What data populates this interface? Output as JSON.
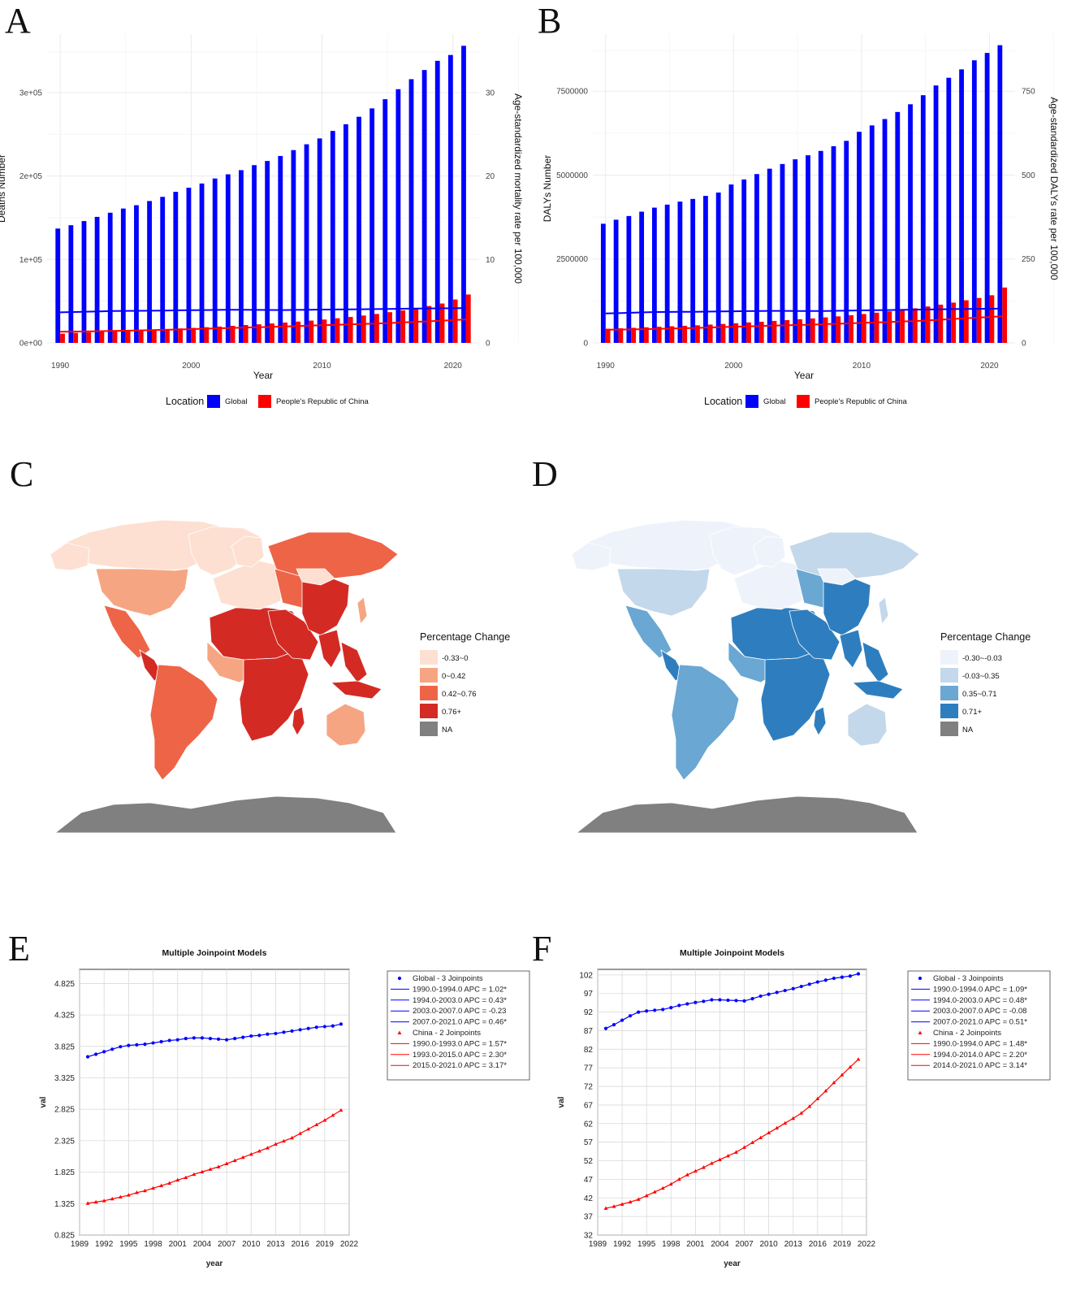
{
  "panel_labels": [
    "A",
    "B",
    "C",
    "D",
    "E",
    "F"
  ],
  "colors": {
    "global": "#0000ff",
    "china": "#ff0000",
    "na": "#808080",
    "grid": "#ebebeb"
  },
  "chart_data": [
    {
      "id": "A",
      "type": "bar",
      "xlabel": "Year",
      "ylabel": "Deaths Number",
      "y2label": "Age-standardized mortality rate per 100,000",
      "x": [
        1990,
        1991,
        1992,
        1993,
        1994,
        1995,
        1996,
        1997,
        1998,
        1999,
        2000,
        2001,
        2002,
        2003,
        2004,
        2005,
        2006,
        2007,
        2008,
        2009,
        2010,
        2011,
        2012,
        2013,
        2014,
        2015,
        2016,
        2017,
        2018,
        2019,
        2020,
        2021
      ],
      "xticks": [
        1990,
        2000,
        2010,
        2020
      ],
      "xlim": [
        1989,
        2022
      ],
      "ylim": [
        0,
        370000
      ],
      "yticks": [
        0,
        100000,
        200000,
        300000
      ],
      "ytick_labels": [
        "0e+00",
        "1e+05",
        "2e+05",
        "3e+05"
      ],
      "y2lim": [
        0,
        37
      ],
      "y2ticks": [
        0,
        10,
        20,
        30
      ],
      "y2tick_labels": [
        "0",
        "10",
        "20",
        "30"
      ],
      "legend_title": "Location",
      "legend": [
        "Global",
        "People's Republic of China"
      ],
      "series": [
        {
          "name": "Global",
          "values": [
            137000,
            141000,
            146000,
            151000,
            156000,
            161000,
            165000,
            170000,
            175000,
            181000,
            186000,
            191000,
            197000,
            202000,
            207000,
            213000,
            218000,
            224000,
            231000,
            238000,
            245000,
            254000,
            262000,
            271000,
            281000,
            292000,
            304000,
            316000,
            327000,
            338000,
            345000,
            356000
          ]
        },
        {
          "name": "People's Republic of China",
          "values": [
            11000,
            12000,
            12600,
            13200,
            13800,
            14500,
            15200,
            15900,
            16600,
            17300,
            18000,
            18800,
            19600,
            20500,
            21400,
            22300,
            23300,
            24400,
            25500,
            26700,
            28000,
            29500,
            31100,
            32800,
            34700,
            36800,
            39000,
            41500,
            44200,
            47200,
            52000,
            58000
          ]
        }
      ],
      "rate_series": [
        {
          "name": "Global",
          "values": [
            3.66,
            3.7,
            3.74,
            3.78,
            3.82,
            3.84,
            3.85,
            3.86,
            3.88,
            3.9,
            3.92,
            3.93,
            3.95,
            3.96,
            3.96,
            3.95,
            3.94,
            3.93,
            3.95,
            3.97,
            3.99,
            4.0,
            4.02,
            4.03,
            4.05,
            4.07,
            4.09,
            4.11,
            4.13,
            4.14,
            4.15,
            4.18
          ]
        },
        {
          "name": "People's Republic of China",
          "values": [
            1.33,
            1.35,
            1.37,
            1.4,
            1.43,
            1.46,
            1.5,
            1.53,
            1.57,
            1.61,
            1.65,
            1.7,
            1.74,
            1.79,
            1.83,
            1.87,
            1.91,
            1.96,
            2.01,
            2.06,
            2.11,
            2.16,
            2.21,
            2.27,
            2.32,
            2.37,
            2.44,
            2.51,
            2.58,
            2.65,
            2.73,
            2.81
          ]
        }
      ]
    },
    {
      "id": "B",
      "type": "bar",
      "xlabel": "Year",
      "ylabel": "DALYs Number",
      "y2label": "Age-standardized DALYs rate per 100,000",
      "x": [
        1990,
        1991,
        1992,
        1993,
        1994,
        1995,
        1996,
        1997,
        1998,
        1999,
        2000,
        2001,
        2002,
        2003,
        2004,
        2005,
        2006,
        2007,
        2008,
        2009,
        2010,
        2011,
        2012,
        2013,
        2014,
        2015,
        2016,
        2017,
        2018,
        2019,
        2020,
        2021
      ],
      "xticks": [
        1990,
        2000,
        2010,
        2020
      ],
      "xlim": [
        1989,
        2022
      ],
      "ylim": [
        0,
        9200000
      ],
      "yticks": [
        0,
        2500000,
        5000000,
        7500000
      ],
      "ytick_labels": [
        "0",
        "2500000",
        "5000000",
        "7500000"
      ],
      "y2lim": [
        0,
        920
      ],
      "y2ticks": [
        0,
        250,
        500,
        750
      ],
      "y2tick_labels": [
        "0",
        "250",
        "500",
        "750"
      ],
      "legend_title": "Location",
      "legend": [
        "Global",
        "People's Republic of China"
      ],
      "series": [
        {
          "name": "Global",
          "values": [
            3550000,
            3670000,
            3780000,
            3910000,
            4030000,
            4120000,
            4210000,
            4290000,
            4380000,
            4480000,
            4720000,
            4870000,
            5030000,
            5190000,
            5330000,
            5470000,
            5590000,
            5720000,
            5860000,
            6020000,
            6290000,
            6480000,
            6670000,
            6880000,
            7110000,
            7380000,
            7670000,
            7900000,
            8150000,
            8420000,
            8640000,
            8870000
          ]
        },
        {
          "name": "People's Republic of China",
          "values": [
            420000,
            435000,
            450000,
            465000,
            480000,
            495000,
            510000,
            525000,
            545000,
            565000,
            585000,
            610000,
            630000,
            655000,
            680000,
            705000,
            730000,
            760000,
            790000,
            825000,
            860000,
            900000,
            940000,
            985000,
            1030000,
            1085000,
            1140000,
            1200000,
            1270000,
            1340000,
            1420000,
            1650000
          ]
        }
      ],
      "rate_series": [
        {
          "name": "Global",
          "values": [
            87.6,
            88.6,
            89.8,
            91.0,
            92.0,
            92.3,
            92.5,
            92.7,
            93.2,
            93.8,
            94.2,
            94.6,
            94.9,
            95.3,
            95.3,
            95.2,
            95.1,
            95.0,
            95.6,
            96.3,
            96.8,
            97.3,
            97.8,
            98.3,
            98.9,
            99.5,
            100.1,
            100.6,
            101.1,
            101.4,
            101.7,
            102.3
          ]
        },
        {
          "name": "People's Republic of China",
          "values": [
            39.2,
            39.7,
            40.3,
            40.9,
            41.6,
            42.6,
            43.6,
            44.6,
            45.7,
            47.0,
            48.2,
            49.2,
            50.2,
            51.3,
            52.3,
            53.3,
            54.3,
            55.6,
            56.9,
            58.2,
            59.5,
            60.8,
            62.1,
            63.4,
            64.8,
            66.6,
            68.7,
            70.8,
            73.0,
            75.1,
            77.2,
            79.3
          ]
        }
      ]
    },
    {
      "id": "C",
      "type": "choropleth",
      "legend_title": "Percentage Change",
      "legend": [
        "-0.33~0",
        "0~0.42",
        "0.42~0.76",
        "0.76+",
        "NA"
      ],
      "palette": [
        "#fde0d2",
        "#f6a582",
        "#ee6447",
        "#d42a24",
        "#808080"
      ]
    },
    {
      "id": "D",
      "type": "choropleth",
      "legend_title": "Percentage Change",
      "legend": [
        "-0.30~-0.03",
        "-0.03~0.35",
        "0.35~0.71",
        "0.71+",
        "NA"
      ],
      "palette": [
        "#eef3fb",
        "#c3d8ea",
        "#6aa7d3",
        "#2e7ebf",
        "#808080"
      ]
    },
    {
      "id": "E",
      "type": "line",
      "title": "Multiple Joinpoint Models",
      "xlabel": "year",
      "ylabel": "val",
      "xlim": [
        1989,
        2022
      ],
      "xticks": [
        1989,
        1992,
        1995,
        1998,
        2001,
        2004,
        2007,
        2010,
        2013,
        2016,
        2019,
        2022
      ],
      "ylim": [
        0.825,
        5.05
      ],
      "yticks": [
        0.825,
        1.325,
        1.825,
        2.325,
        2.825,
        3.325,
        3.825,
        4.325,
        4.825
      ],
      "x": [
        1990,
        1991,
        1992,
        1993,
        1994,
        1995,
        1996,
        1997,
        1998,
        1999,
        2000,
        2001,
        2002,
        2003,
        2004,
        2005,
        2006,
        2007,
        2008,
        2009,
        2010,
        2011,
        2012,
        2013,
        2014,
        2015,
        2016,
        2017,
        2018,
        2019,
        2020,
        2021
      ],
      "series": [
        {
          "name": "Global - 3 Joinpoints",
          "values": [
            3.66,
            3.7,
            3.74,
            3.78,
            3.82,
            3.84,
            3.85,
            3.86,
            3.88,
            3.9,
            3.92,
            3.93,
            3.95,
            3.96,
            3.96,
            3.95,
            3.94,
            3.93,
            3.95,
            3.97,
            3.99,
            4.0,
            4.02,
            4.03,
            4.05,
            4.07,
            4.09,
            4.11,
            4.13,
            4.14,
            4.15,
            4.18
          ]
        },
        {
          "name": "China - 2 Joinpoints",
          "values": [
            1.33,
            1.35,
            1.37,
            1.4,
            1.43,
            1.46,
            1.5,
            1.53,
            1.57,
            1.61,
            1.65,
            1.7,
            1.74,
            1.79,
            1.83,
            1.87,
            1.91,
            1.96,
            2.01,
            2.06,
            2.11,
            2.16,
            2.21,
            2.27,
            2.32,
            2.37,
            2.44,
            2.51,
            2.58,
            2.65,
            2.73,
            2.81
          ]
        }
      ],
      "legend": [
        {
          "kind": "marker",
          "color": "#0000ff",
          "shape": "circle",
          "text": "Global - 3 Joinpoints"
        },
        {
          "kind": "line",
          "color": "#0000ff",
          "text": "1990.0-1994.0 APC  =  1.02*"
        },
        {
          "kind": "line",
          "color": "#0000ff",
          "text": "1994.0-2003.0 APC  =  0.43*"
        },
        {
          "kind": "line",
          "color": "#0000ff",
          "text": "2003.0-2007.0 APC  =  -0.23"
        },
        {
          "kind": "line",
          "color": "#0000ff",
          "text": "2007.0-2021.0 APC  =  0.46*"
        },
        {
          "kind": "marker",
          "color": "#ff0000",
          "shape": "triangle",
          "text": "China - 2 Joinpoints"
        },
        {
          "kind": "line",
          "color": "#ff0000",
          "text": "1990.0-1993.0 APC  =  1.57*"
        },
        {
          "kind": "line",
          "color": "#ff0000",
          "text": "1993.0-2015.0 APC  =  2.30*"
        },
        {
          "kind": "line",
          "color": "#ff0000",
          "text": "2015.0-2021.0 APC  =  3.17*"
        }
      ]
    },
    {
      "id": "F",
      "type": "line",
      "title": "Multiple Joinpoint Models",
      "xlabel": "year",
      "ylabel": "val",
      "xlim": [
        1989,
        2022
      ],
      "xticks": [
        1989,
        1992,
        1995,
        1998,
        2001,
        2004,
        2007,
        2010,
        2013,
        2016,
        2019,
        2022
      ],
      "ylim": [
        32,
        103.5
      ],
      "yticks": [
        32,
        37,
        42,
        47,
        52,
        57,
        62,
        67,
        72,
        77,
        82,
        87,
        92,
        97,
        102
      ],
      "x": [
        1990,
        1991,
        1992,
        1993,
        1994,
        1995,
        1996,
        1997,
        1998,
        1999,
        2000,
        2001,
        2002,
        2003,
        2004,
        2005,
        2006,
        2007,
        2008,
        2009,
        2010,
        2011,
        2012,
        2013,
        2014,
        2015,
        2016,
        2017,
        2018,
        2019,
        2020,
        2021
      ],
      "series": [
        {
          "name": "Global - 3 Joinpoints",
          "values": [
            87.6,
            88.6,
            89.8,
            91.0,
            92.0,
            92.3,
            92.5,
            92.7,
            93.2,
            93.8,
            94.2,
            94.6,
            94.9,
            95.3,
            95.3,
            95.2,
            95.1,
            95.0,
            95.6,
            96.3,
            96.8,
            97.3,
            97.8,
            98.3,
            98.9,
            99.5,
            100.1,
            100.6,
            101.1,
            101.4,
            101.7,
            102.3
          ]
        },
        {
          "name": "China - 2 Joinpoints",
          "values": [
            39.2,
            39.7,
            40.3,
            40.9,
            41.6,
            42.6,
            43.6,
            44.6,
            45.7,
            47.0,
            48.2,
            49.2,
            50.2,
            51.3,
            52.3,
            53.3,
            54.3,
            55.6,
            56.9,
            58.2,
            59.5,
            60.8,
            62.1,
            63.4,
            64.8,
            66.6,
            68.7,
            70.8,
            73.0,
            75.1,
            77.2,
            79.3
          ]
        }
      ],
      "legend": [
        {
          "kind": "marker",
          "color": "#0000ff",
          "shape": "circle",
          "text": "Global - 3 Joinpoints"
        },
        {
          "kind": "line",
          "color": "#0000ff",
          "text": "1990.0-1994.0 APC  =  1.09*"
        },
        {
          "kind": "line",
          "color": "#0000ff",
          "text": "1994.0-2003.0 APC  =  0.48*"
        },
        {
          "kind": "line",
          "color": "#0000ff",
          "text": "2003.0-2007.0 APC  =  -0.08"
        },
        {
          "kind": "line",
          "color": "#0000ff",
          "text": "2007.0-2021.0 APC  =  0.51*"
        },
        {
          "kind": "marker",
          "color": "#ff0000",
          "shape": "triangle",
          "text": "China - 2 Joinpoints"
        },
        {
          "kind": "line",
          "color": "#ff0000",
          "text": "1990.0-1994.0 APC  =  1.48*"
        },
        {
          "kind": "line",
          "color": "#ff0000",
          "text": "1994.0-2014.0 APC  =  2.20*"
        },
        {
          "kind": "line",
          "color": "#ff0000",
          "text": "2014.0-2021.0 APC  =  3.14*"
        }
      ]
    }
  ]
}
